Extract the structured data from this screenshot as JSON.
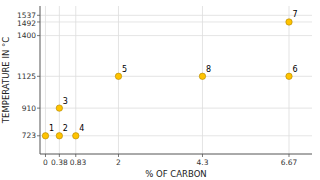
{
  "chart_data": {
    "type": "scatter",
    "xlabel": "% OF CARBON",
    "ylabel": "TEMPERATURE IN °C",
    "x": [
      0,
      0.38,
      0.38,
      0.83,
      2,
      4.3,
      6.67,
      6.67
    ],
    "values": [
      723,
      910,
      723,
      723,
      1125,
      1125,
      1492,
      1125
    ],
    "point_labels": [
      "1",
      "3",
      "2",
      "4",
      "5",
      "8",
      "7",
      "6"
    ],
    "color": "#FFC300",
    "xlim": [
      -0.15,
      7.3
    ],
    "ylim": [
      600,
      1600
    ],
    "xticks": [
      0,
      0.38,
      0.83,
      2,
      4.3,
      6.67
    ],
    "yticks": [
      723,
      910,
      1125,
      1400,
      1492,
      1537
    ],
    "grid": true
  }
}
